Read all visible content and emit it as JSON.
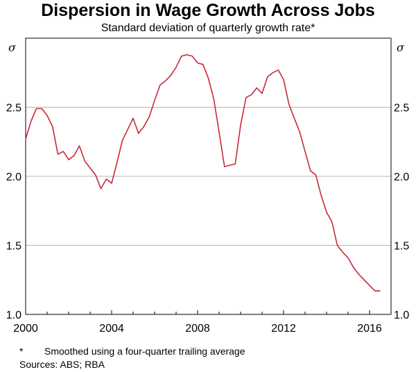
{
  "title": "Dispersion in Wage Growth Across Jobs",
  "subtitle": "Standard deviation of quarterly growth rate*",
  "footnote_marker": "*",
  "footnote_text": "Smoothed using a four-quarter trailing average",
  "sources": "Sources: ABS; RBA",
  "colors": {
    "line": "#c8283a",
    "grid": "#b4b4b4",
    "frame": "#000000"
  },
  "chart_data": {
    "type": "line",
    "title": "Dispersion in Wage Growth Across Jobs",
    "subtitle": "Standard deviation of quarterly growth rate*",
    "unit_label": "σ",
    "xlim": [
      2000,
      2017
    ],
    "ylim": [
      1.0,
      3.0
    ],
    "x_ticks": [
      2000,
      2004,
      2008,
      2012,
      2016
    ],
    "y_ticks": [
      1.0,
      1.5,
      2.0,
      2.5
    ],
    "y_tick_labels": [
      "1.0",
      "1.5",
      "2.0",
      "2.5"
    ],
    "grid": true,
    "series": [
      {
        "x": [
          2000.0,
          2000.25,
          2000.5,
          2000.75,
          2001.0,
          2001.25,
          2001.5,
          2001.75,
          2002.0,
          2002.25,
          2002.5,
          2002.75,
          2003.0,
          2003.25,
          2003.5,
          2003.75,
          2004.0,
          2004.25,
          2004.5,
          2004.75,
          2005.0,
          2005.25,
          2005.5,
          2005.75,
          2006.0,
          2006.25,
          2006.5,
          2006.75,
          2007.0,
          2007.25,
          2007.5,
          2007.75,
          2008.0,
          2008.25,
          2008.5,
          2008.75,
          2009.0,
          2009.25,
          2009.5,
          2009.75,
          2010.0,
          2010.25,
          2010.5,
          2010.75,
          2011.0,
          2011.25,
          2011.5,
          2011.75,
          2012.0,
          2012.25,
          2012.5,
          2012.75,
          2013.0,
          2013.25,
          2013.5,
          2013.75,
          2014.0,
          2014.25,
          2014.5,
          2014.75,
          2015.0,
          2015.25,
          2015.5,
          2015.75,
          2016.0,
          2016.25,
          2016.5
        ],
        "values": [
          2.27,
          2.4,
          2.49,
          2.49,
          2.44,
          2.36,
          2.16,
          2.18,
          2.12,
          2.15,
          2.22,
          2.11,
          2.06,
          2.01,
          1.91,
          1.98,
          1.95,
          2.1,
          2.26,
          2.34,
          2.42,
          2.31,
          2.36,
          2.43,
          2.55,
          2.66,
          2.69,
          2.73,
          2.79,
          2.87,
          2.88,
          2.87,
          2.82,
          2.81,
          2.71,
          2.56,
          2.32,
          2.07,
          2.08,
          2.09,
          2.37,
          2.57,
          2.59,
          2.64,
          2.6,
          2.72,
          2.75,
          2.77,
          2.7,
          2.52,
          2.42,
          2.32,
          2.18,
          2.04,
          2.01,
          1.86,
          1.74,
          1.67,
          1.5,
          1.45,
          1.41,
          1.34,
          1.29,
          1.25,
          1.21,
          1.17,
          1.17
        ]
      }
    ]
  }
}
